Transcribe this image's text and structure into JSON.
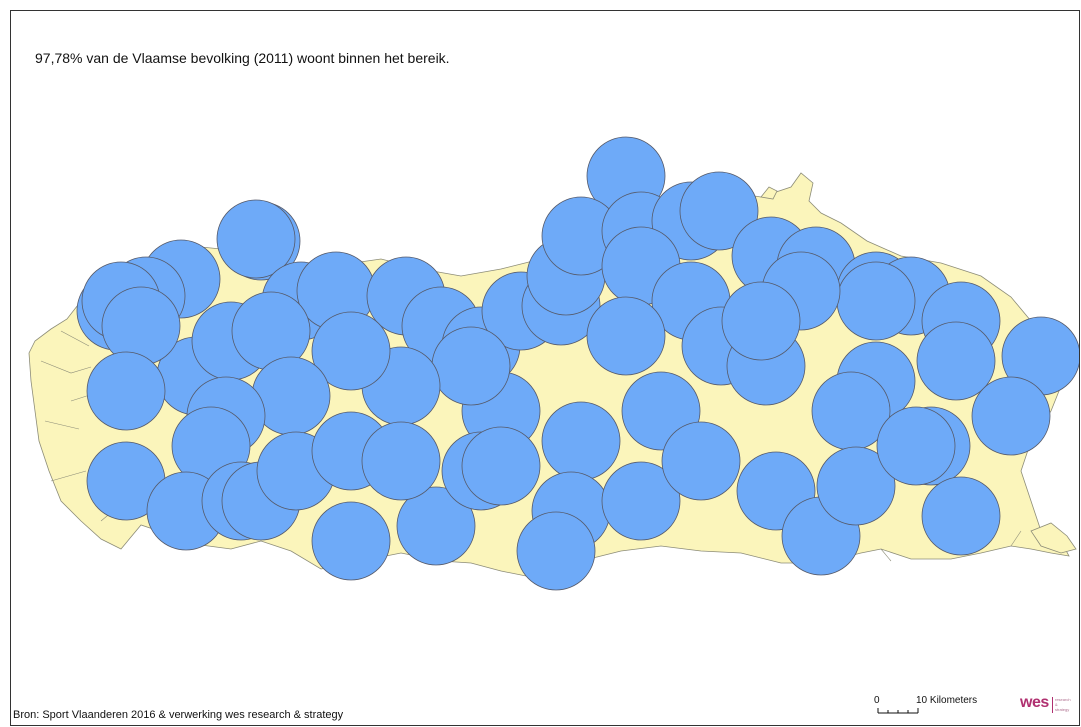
{
  "map": {
    "headline": "97,78% van de Vlaamse bevolking (2011) woont binnen het bereik.",
    "source": "Bron: Sport Vlaanderen 2016 & verwerking wes research & strategy",
    "scale_bar": {
      "zero_label": "0",
      "distance_label": "10 Kilometers"
    },
    "logo": {
      "word": "wes",
      "subtitle_lines": [
        "research",
        "&",
        "strategy"
      ]
    },
    "colors": {
      "region_fill": "#fbf5bb",
      "region_stroke": "#8c8c78",
      "buffer_fill": "#6eaaf8",
      "buffer_stroke": "#555a6a"
    },
    "layers": [
      "flemish-municipalities",
      "facility-reach-buffers"
    ]
  }
}
